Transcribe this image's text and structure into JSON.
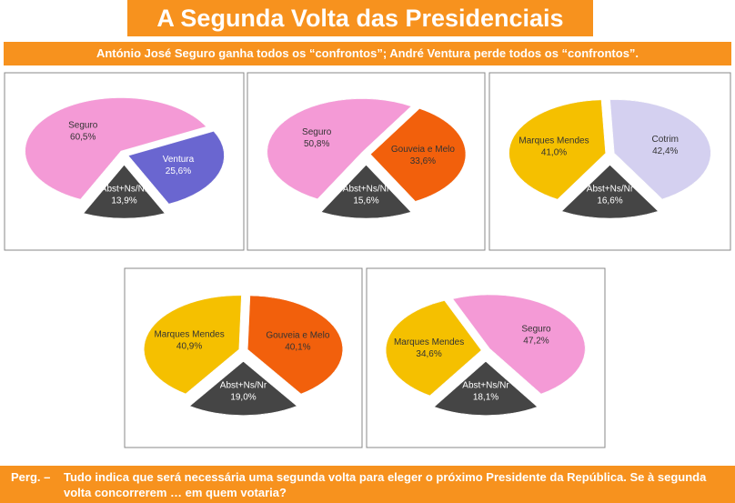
{
  "title": "A  Segunda Volta das Presidenciais",
  "subtitle": "António José Seguro ganha todos os “confrontos”; André Ventura perde todos os “confrontos”.",
  "question_label": "Perg. –",
  "question": "Tudo indica que será necessária uma segunda volta para eleger o próximo Presidente da República. Se à segunda volta concorrerem … em quem votaria?",
  "chart_data": [
    {
      "type": "pie",
      "categories": [
        "Seguro",
        "Ventura",
        "Abst+Ns/Nr"
      ],
      "values": [
        60.5,
        25.6,
        13.9
      ],
      "value_labels": [
        "60,5%",
        "25,6%",
        "13,9%"
      ],
      "colors": [
        "#f49ad6",
        "#6a66d0",
        "#454545"
      ]
    },
    {
      "type": "pie",
      "categories": [
        "Seguro",
        "Gouveia e Melo",
        "Abst+Ns/Nr"
      ],
      "values": [
        50.8,
        33.6,
        15.6
      ],
      "value_labels": [
        "50,8%",
        "33,6%",
        "15,6%"
      ],
      "colors": [
        "#f49ad6",
        "#f2600c",
        "#454545"
      ]
    },
    {
      "type": "pie",
      "categories": [
        "Marques Mendes",
        "Cotrim",
        "Abst+Ns/Nr"
      ],
      "values": [
        41.0,
        42.4,
        16.6
      ],
      "value_labels": [
        "41,0%",
        "42,4%",
        "16,6%"
      ],
      "colors": [
        "#f5c000",
        "#d4d0f0",
        "#454545"
      ]
    },
    {
      "type": "pie",
      "categories": [
        "Marques Mendes",
        "Gouveia e Melo",
        "Abst+Ns/Nr"
      ],
      "values": [
        40.9,
        40.1,
        19.0
      ],
      "value_labels": [
        "40,9%",
        "40,1%",
        "19,0%"
      ],
      "colors": [
        "#f5c000",
        "#f2600c",
        "#454545"
      ]
    },
    {
      "type": "pie",
      "categories": [
        "Marques Mendes",
        "Seguro",
        "Abst+Ns/Nr"
      ],
      "values": [
        34.6,
        47.2,
        18.1
      ],
      "value_labels": [
        "34,6%",
        "47,2%",
        "18,1%"
      ],
      "colors": [
        "#f5c000",
        "#f49ad6",
        "#454545"
      ]
    }
  ]
}
